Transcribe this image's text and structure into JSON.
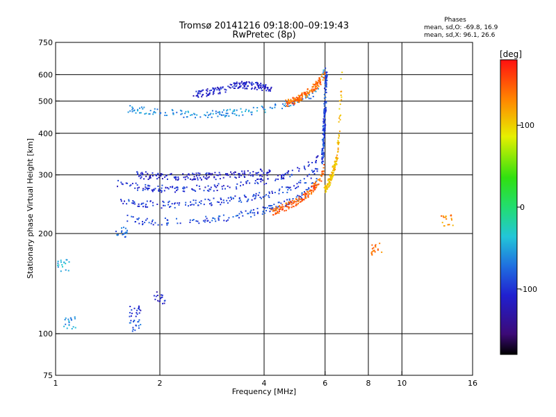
{
  "chart_data": {
    "type": "scatter",
    "title": "Tromsø 20141216 09:18:00–09:19:43",
    "subtitle": "RwPretec (8p)",
    "xlabel": "Frequency [MHz]",
    "ylabel": "Stationary phase Virtual Height [km]",
    "x_scale": "log",
    "y_scale": "log",
    "xlim": [
      1,
      16
    ],
    "ylim": [
      75,
      750
    ],
    "x_ticks": [
      1,
      2,
      4,
      6,
      8,
      10,
      16
    ],
    "y_ticks": [
      75,
      100,
      200,
      300,
      400,
      500,
      600,
      750
    ],
    "x_gridlines": [
      2,
      4,
      6,
      8,
      10
    ],
    "y_gridlines": [
      100,
      200,
      300,
      400,
      500,
      600
    ],
    "grid": true,
    "legend": {
      "title": "Phases",
      "lines": [
        "mean, sd,O: -69.8, 16.9",
        "mean, sd,X:  96.1, 26.6"
      ]
    },
    "colorbar": {
      "label": "[deg]",
      "ticks": [
        "100",
        "0",
        "-100"
      ],
      "tick_values": [
        100,
        0,
        -100
      ],
      "range": [
        -180,
        180
      ],
      "colormap": "rainbow"
    },
    "traces": [
      {
        "x": [
          1.62,
          1.8,
          2.0,
          2.4,
          3.0,
          3.6,
          4.2,
          4.8,
          5.3,
          5.7,
          5.95
        ],
        "y": [
          222,
          218,
          217,
          218,
          222,
          229,
          238,
          250,
          265,
          290,
          340
        ],
        "phase": -88
      },
      {
        "x": [
          1.55,
          1.8,
          2.1,
          2.5,
          3.0,
          3.6,
          4.2,
          4.8,
          5.3,
          5.8
        ],
        "y": [
          250,
          245,
          244,
          246,
          250,
          256,
          263,
          275,
          292,
          320
        ],
        "phase": -95
      },
      {
        "x": [
          1.5,
          1.8,
          2.1,
          2.5,
          3.0,
          3.6,
          4.2,
          4.8,
          5.3,
          5.8
        ],
        "y": [
          282,
          275,
          272,
          272,
          276,
          282,
          290,
          303,
          318,
          340
        ],
        "phase": -102
      },
      {
        "x": [
          1.7,
          2.0,
          2.5,
          3.0,
          3.6,
          4.2
        ],
        "y": [
          300,
          297,
          296,
          298,
          302,
          306
        ],
        "phase": -112
      },
      {
        "x": [
          4.2,
          4.6,
          5.0,
          5.4,
          5.8,
          6.0
        ],
        "y": [
          232,
          240,
          250,
          265,
          290,
          320
        ],
        "phase": 148
      },
      {
        "x": [
          5.9,
          5.95,
          6.0,
          6.02,
          6.05
        ],
        "y": [
          330,
          400,
          480,
          550,
          620
        ],
        "phase": -92
      },
      {
        "x": [
          6.0,
          6.3,
          6.5,
          6.6,
          6.65,
          6.7
        ],
        "y": [
          270,
          300,
          340,
          400,
          500,
          620
        ],
        "phase": 108
      },
      {
        "x": [
          1.6,
          2.0,
          2.5,
          3.0,
          3.6,
          4.2,
          5.0,
          5.6,
          6.0
        ],
        "y": [
          475,
          462,
          455,
          458,
          465,
          478,
          498,
          530,
          620
        ],
        "phase": -60
      },
      {
        "x": [
          2.5,
          3.0,
          3.4,
          3.8,
          4.2
        ],
        "y": [
          520,
          540,
          560,
          555,
          545
        ],
        "phase": -110
      },
      {
        "x": [
          4.6,
          5.1,
          5.6,
          6.0
        ],
        "y": [
          490,
          510,
          550,
          600
        ],
        "phase": 145
      }
    ],
    "clusters": [
      {
        "x": 1.55,
        "y": 200,
        "phase": -75
      },
      {
        "x": 1.7,
        "y": 117,
        "phase": -105
      },
      {
        "x": 2.0,
        "y": 128,
        "phase": -110
      },
      {
        "x": 1.1,
        "y": 108,
        "phase": -55
      },
      {
        "x": 1.7,
        "y": 106,
        "phase": -80
      },
      {
        "x": 1.05,
        "y": 160,
        "phase": -50
      },
      {
        "x": 8.5,
        "y": 180,
        "phase": 140
      },
      {
        "x": 13.5,
        "y": 220,
        "phase": 130
      }
    ]
  }
}
